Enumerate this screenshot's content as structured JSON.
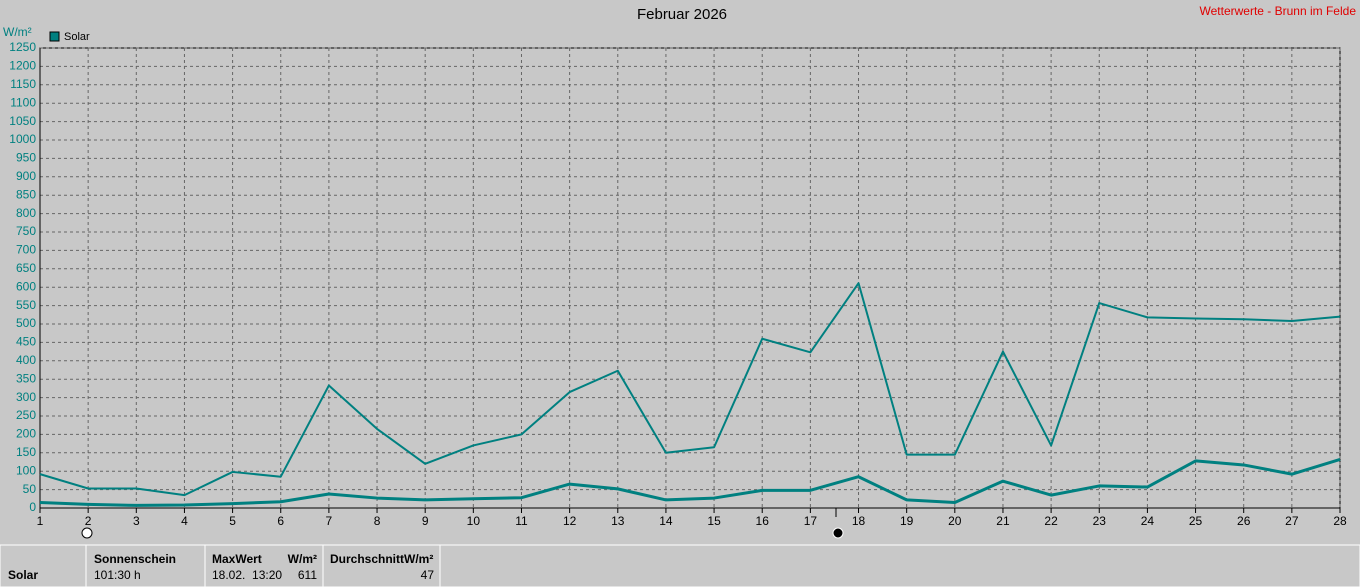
{
  "chart_data": {
    "type": "line",
    "title": "Februar 2026",
    "subtitle": "Wetterwerte - Brunn im Felde",
    "y_label": "W/m²",
    "x": [
      1,
      2,
      3,
      4,
      5,
      6,
      7,
      8,
      9,
      10,
      11,
      12,
      13,
      14,
      15,
      16,
      17,
      18,
      19,
      20,
      21,
      22,
      23,
      24,
      25,
      26,
      27,
      28
    ],
    "xlim": [
      1,
      28
    ],
    "xticks": [
      1,
      2,
      3,
      4,
      5,
      6,
      7,
      8,
      9,
      10,
      11,
      12,
      13,
      14,
      15,
      16,
      17,
      18,
      19,
      20,
      21,
      22,
      23,
      24,
      25,
      26,
      27,
      28
    ],
    "ylim": [
      0,
      1250
    ],
    "yticks": [
      0,
      50,
      100,
      150,
      200,
      250,
      300,
      350,
      400,
      450,
      500,
      550,
      600,
      650,
      700,
      750,
      800,
      850,
      900,
      950,
      1000,
      1050,
      1100,
      1150,
      1200,
      1250
    ],
    "grid": true,
    "series": [
      {
        "name": "Solar",
        "color": "#008080",
        "values": [
          92,
          53,
          53,
          35,
          98,
          85,
          333,
          215,
          120,
          170,
          200,
          315,
          373,
          150,
          165,
          460,
          423,
          611,
          145,
          145,
          425,
          170,
          557,
          518,
          515,
          513,
          508,
          520
        ]
      },
      {
        "color": "#008080",
        "values": [
          15,
          10,
          7,
          8,
          12,
          17,
          38,
          27,
          22,
          25,
          28,
          65,
          52,
          22,
          27,
          48,
          48,
          85,
          22,
          15,
          73,
          35,
          60,
          57,
          128,
          117,
          92,
          132
        ]
      }
    ]
  },
  "footer": {
    "row_label": "Solar",
    "sunshine": {
      "header": "Sonnenschein",
      "value": "101:30 h"
    },
    "max": {
      "header": "MaxWert",
      "unit": "W/m²",
      "date": "18.02.  13:20",
      "value": "611"
    },
    "average": {
      "header": "Durchschnitt",
      "unit": "W/m²",
      "value": "47"
    }
  }
}
